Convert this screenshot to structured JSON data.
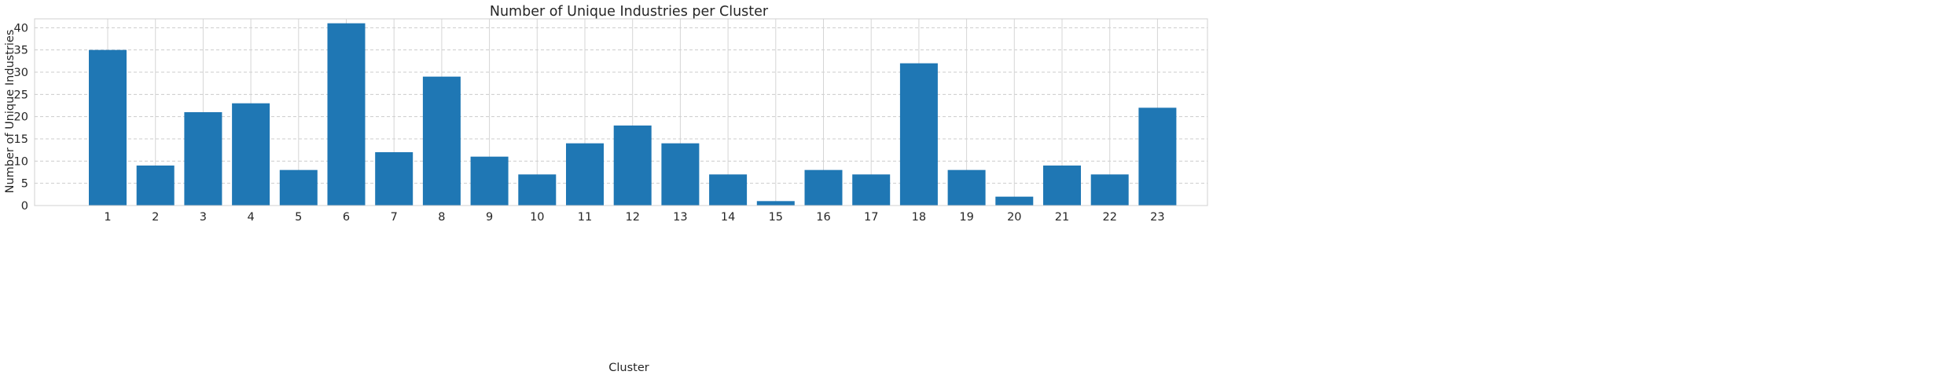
{
  "chart_data": {
    "type": "bar",
    "title": "Number of Unique Industries per Cluster",
    "xlabel": "Cluster",
    "ylabel": "Number of Unique Industries",
    "categories": [
      "1",
      "2",
      "3",
      "4",
      "5",
      "6",
      "7",
      "8",
      "9",
      "10",
      "11",
      "12",
      "13",
      "14",
      "15",
      "16",
      "17",
      "18",
      "19",
      "20",
      "21",
      "22",
      "23"
    ],
    "values": [
      35,
      9,
      21,
      23,
      8,
      41,
      12,
      29,
      11,
      7,
      14,
      18,
      14,
      7,
      1,
      8,
      7,
      32,
      8,
      2,
      9,
      7,
      22
    ],
    "yticks": [
      "0",
      "5",
      "10",
      "15",
      "20",
      "25",
      "30",
      "35",
      "40"
    ],
    "ylim": [
      0,
      42
    ],
    "grid": true,
    "bar_color": "#1f77b4"
  }
}
